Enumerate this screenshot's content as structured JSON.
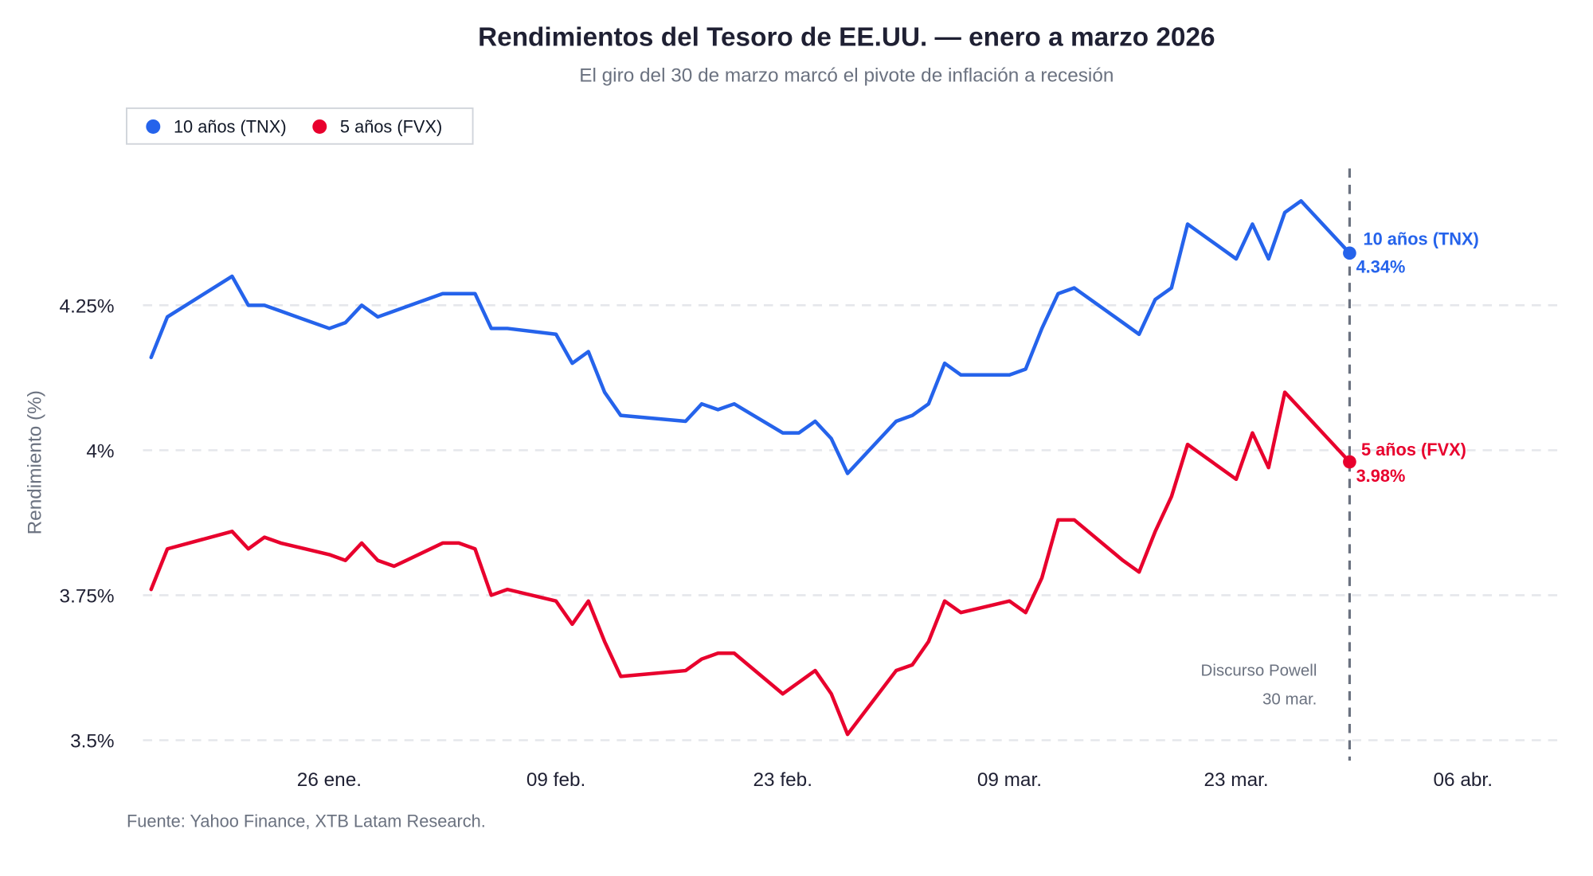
{
  "chart_data": {
    "type": "line",
    "title": "Rendimientos del Tesoro de EE.UU. — enero a marzo 2026",
    "subtitle": "El giro del 30 de marzo marcó el pivote de inflación a recesión",
    "ylabel": "Rendimiento (%)",
    "xlabel": "",
    "ylim": [
      3.47,
      4.47
    ],
    "xlim": [
      "2026-01-13",
      "2026-04-11"
    ],
    "grid": "horizontal dashed",
    "legend_placement": "top-left",
    "y_ticks": [
      {
        "value": 4.25,
        "label": "4.25%"
      },
      {
        "value": 4.0,
        "label": "4%"
      },
      {
        "value": 3.75,
        "label": "3.75%"
      },
      {
        "value": 3.5,
        "label": "3.5%"
      }
    ],
    "x_ticks": [
      {
        "date": "2026-01-26",
        "label": "26 ene."
      },
      {
        "date": "2026-02-09",
        "label": "09 feb."
      },
      {
        "date": "2026-02-23",
        "label": "23 feb."
      },
      {
        "date": "2026-03-09",
        "label": "09 mar."
      },
      {
        "date": "2026-03-23",
        "label": "23 mar."
      },
      {
        "date": "2026-04-06",
        "label": "06 abr."
      }
    ],
    "x": [
      "2026-01-15",
      "2026-01-16",
      "2026-01-20",
      "2026-01-21",
      "2026-01-22",
      "2026-01-23",
      "2026-01-26",
      "2026-01-27",
      "2026-01-28",
      "2026-01-29",
      "2026-01-30",
      "2026-02-02",
      "2026-02-03",
      "2026-02-04",
      "2026-02-05",
      "2026-02-06",
      "2026-02-09",
      "2026-02-10",
      "2026-02-11",
      "2026-02-12",
      "2026-02-13",
      "2026-02-17",
      "2026-02-18",
      "2026-02-19",
      "2026-02-20",
      "2026-02-23",
      "2026-02-24",
      "2026-02-25",
      "2026-02-26",
      "2026-02-27",
      "2026-03-02",
      "2026-03-03",
      "2026-03-04",
      "2026-03-05",
      "2026-03-06",
      "2026-03-09",
      "2026-03-10",
      "2026-03-11",
      "2026-03-12",
      "2026-03-13",
      "2026-03-16",
      "2026-03-17",
      "2026-03-18",
      "2026-03-19",
      "2026-03-20",
      "2026-03-23",
      "2026-03-24",
      "2026-03-25",
      "2026-03-26",
      "2026-03-27",
      "2026-03-30"
    ],
    "series": [
      {
        "name": "10 años (TNX)",
        "color": "#2563eb",
        "values": [
          4.16,
          4.23,
          4.3,
          4.25,
          4.25,
          4.24,
          4.21,
          4.22,
          4.25,
          4.23,
          4.24,
          4.27,
          4.27,
          4.27,
          4.21,
          4.21,
          4.2,
          4.15,
          4.17,
          4.1,
          4.06,
          4.05,
          4.08,
          4.07,
          4.08,
          4.03,
          4.03,
          4.05,
          4.02,
          3.96,
          4.05,
          4.06,
          4.08,
          4.15,
          4.13,
          4.13,
          4.14,
          4.21,
          4.27,
          4.28,
          4.22,
          4.2,
          4.26,
          4.28,
          4.39,
          4.33,
          4.39,
          4.33,
          4.41,
          4.43,
          4.34
        ],
        "end_label": "10 años (TNX)",
        "end_value_label": "4.34%"
      },
      {
        "name": "5 años (FVX)",
        "color": "#e8002d",
        "values": [
          3.76,
          3.83,
          3.86,
          3.83,
          3.85,
          3.84,
          3.82,
          3.81,
          3.84,
          3.81,
          3.8,
          3.84,
          3.84,
          3.83,
          3.75,
          3.76,
          3.74,
          3.7,
          3.74,
          3.67,
          3.61,
          3.62,
          3.64,
          3.65,
          3.65,
          3.58,
          3.6,
          3.62,
          3.58,
          3.51,
          3.62,
          3.63,
          3.67,
          3.74,
          3.72,
          3.74,
          3.72,
          3.78,
          3.88,
          3.88,
          3.81,
          3.79,
          3.86,
          3.92,
          4.01,
          3.95,
          4.03,
          3.97,
          4.1,
          4.07,
          3.98
        ],
        "end_label": "5 años (FVX)",
        "end_value_label": "3.98%"
      }
    ],
    "annotations": [
      {
        "date": "2026-03-30",
        "type": "vertical-dashed-line",
        "color": "#6b7280",
        "text_line1": "Discurso Powell",
        "text_line2": "30 mar."
      }
    ],
    "source": "Fuente: Yahoo Finance, XTB Latam Research."
  }
}
